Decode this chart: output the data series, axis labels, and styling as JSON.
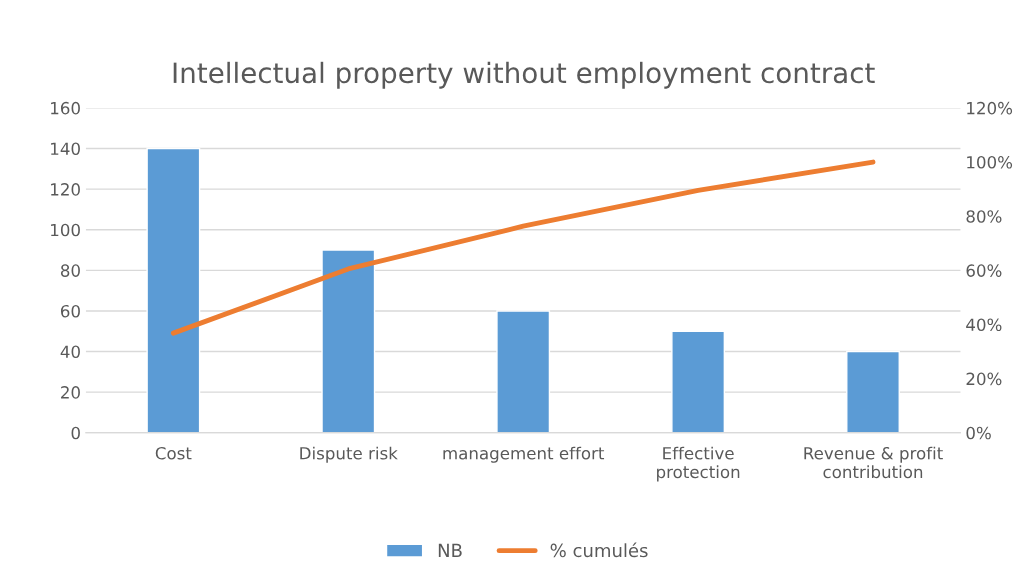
{
  "chart_data": {
    "type": "bar",
    "title": "Intellectual property without employment contract",
    "categories": [
      "Cost",
      "Dispute risk",
      "management effort",
      "Effective protection",
      "Revenue & profit contribution"
    ],
    "series": [
      {
        "name": "NB",
        "color": "#5b9bd5",
        "values": [
          140,
          90,
          60,
          50,
          40
        ]
      },
      {
        "name": "% cumulés",
        "type": "line",
        "axis": "y2",
        "color": "#ed7d31",
        "values": [
          36.8,
          60.5,
          76.3,
          89.5,
          100
        ]
      }
    ],
    "ylim": [
      0,
      160
    ],
    "yticks": [
      0,
      20,
      40,
      60,
      80,
      100,
      120,
      140,
      160
    ],
    "y2lim": [
      0,
      120
    ],
    "y2ticks": [
      {
        "value": 0,
        "label": "0%"
      },
      {
        "value": 20,
        "label": "20%"
      },
      {
        "value": 40,
        "label": "40%"
      },
      {
        "value": 60,
        "label": "60%"
      },
      {
        "value": 80,
        "label": "80%"
      },
      {
        "value": 100,
        "label": "100%"
      },
      {
        "value": 120,
        "label": "120%"
      }
    ],
    "grid": "y",
    "legend": "bottom",
    "marker": "none",
    "line_style": "solid"
  }
}
